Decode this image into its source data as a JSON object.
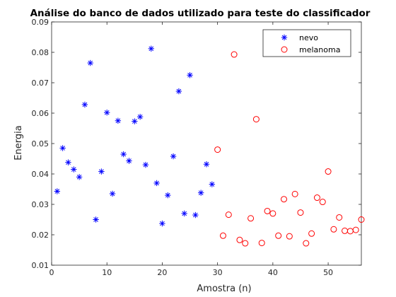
{
  "chart_data": {
    "type": "scatter",
    "title": "Análise do banco de dados utilizado para teste do classificador",
    "xlabel": "Amostra (n)",
    "ylabel": "Energia",
    "xlim": [
      0,
      56
    ],
    "ylim": [
      0.01,
      0.09
    ],
    "xticks": [
      0,
      10,
      20,
      30,
      40,
      50
    ],
    "yticks": [
      0.01,
      0.02,
      0.03,
      0.04,
      0.05,
      0.06,
      0.07,
      0.08,
      0.09
    ],
    "ytick_labels": [
      "0.01",
      "0.02",
      "0.03",
      "0.04",
      "0.05",
      "0.06",
      "0.07",
      "0.08",
      "0.09"
    ],
    "grid": false,
    "legend_position": "top-right",
    "series": [
      {
        "name": "nevo",
        "marker": "asterisk",
        "color": "#0000ff",
        "x": [
          1,
          2,
          3,
          4,
          5,
          6,
          7,
          8,
          9,
          10,
          11,
          12,
          13,
          14,
          15,
          16,
          17,
          18,
          19,
          20,
          21,
          22,
          23,
          24,
          25,
          26,
          27,
          28,
          29
        ],
        "y": [
          0.0343,
          0.0485,
          0.0438,
          0.0415,
          0.039,
          0.0628,
          0.0765,
          0.025,
          0.0408,
          0.0602,
          0.0335,
          0.0575,
          0.0465,
          0.0443,
          0.0573,
          0.0588,
          0.043,
          0.0812,
          0.037,
          0.0237,
          0.033,
          0.0458,
          0.0672,
          0.027,
          0.0725,
          0.0265,
          0.0338,
          0.0432,
          0.0366
        ]
      },
      {
        "name": "melanoma",
        "marker": "circle",
        "color": "#ff0000",
        "x": [
          30,
          31,
          32,
          33,
          34,
          35,
          36,
          37,
          38,
          39,
          40,
          41,
          42,
          43,
          44,
          45,
          46,
          47,
          48,
          49,
          50,
          51,
          52,
          53,
          54,
          55,
          56
        ],
        "y": [
          0.048,
          0.0197,
          0.0266,
          0.0793,
          0.0183,
          0.0172,
          0.0254,
          0.058,
          0.0173,
          0.0278,
          0.027,
          0.0197,
          0.0317,
          0.0195,
          0.0334,
          0.0273,
          0.0172,
          0.0204,
          0.0322,
          0.0308,
          0.0408,
          0.0218,
          0.0257,
          0.0213,
          0.0212,
          0.0216,
          0.025
        ]
      }
    ]
  }
}
